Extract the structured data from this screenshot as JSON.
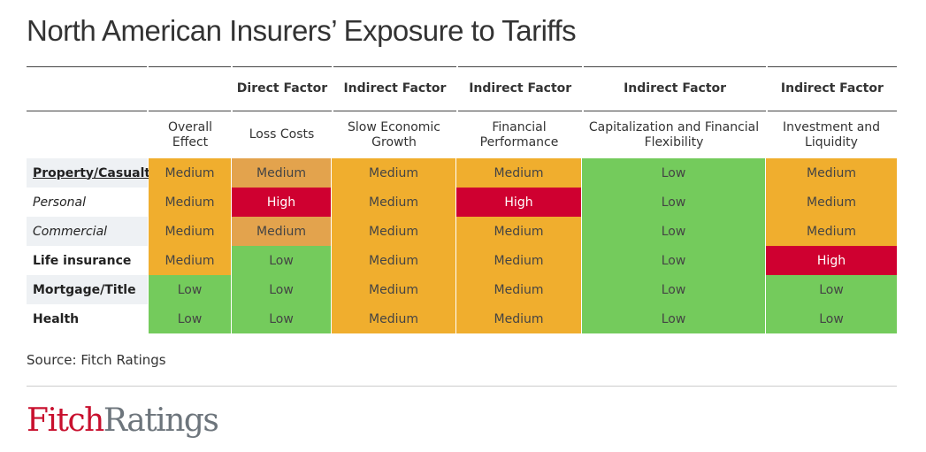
{
  "title": "North American Insurers’ Exposure to Tariffs",
  "factor_headers": [
    "",
    "",
    "Direct Factor",
    "Indirect Factor",
    "Indirect Factor",
    "Indirect Factor",
    "Indirect Factor"
  ],
  "sub_headers": [
    "",
    "Overall Effect",
    "Loss Costs",
    "Slow Economic Growth",
    "Financial Performance",
    "Capitalization and Financial Flexibility",
    "Investment and Liquidity"
  ],
  "rows": [
    {
      "label": "Property/Casualty",
      "style": "underline-bold",
      "values": [
        "Medium",
        "Medium",
        "Medium",
        "Medium",
        "Low",
        "Medium"
      ]
    },
    {
      "label": "Personal",
      "style": "italic",
      "values": [
        "Medium",
        "High",
        "Medium",
        "High",
        "Low",
        "Medium"
      ]
    },
    {
      "label": "Commercial",
      "style": "italic",
      "values": [
        "Medium",
        "Medium",
        "Medium",
        "Medium",
        "Low",
        "Medium"
      ]
    },
    {
      "label": "Life insurance",
      "style": "bold",
      "values": [
        "Medium",
        "Low",
        "Medium",
        "Medium",
        "Low",
        "High"
      ]
    },
    {
      "label": "Mortgage/Title",
      "style": "bold",
      "values": [
        "Low",
        "Low",
        "Medium",
        "Medium",
        "Low",
        "Low"
      ]
    },
    {
      "label": "Health",
      "style": "bold",
      "values": [
        "Low",
        "Low",
        "Medium",
        "Medium",
        "Low",
        "Low"
      ]
    }
  ],
  "colors": {
    "High": "#cf0030",
    "Medium": "#f0ae2e",
    "Medium_loss_costs": "#e3a34d",
    "Low": "#74cb5c"
  },
  "source": "Source: Fitch Ratings",
  "logo": {
    "part1": "Fitch",
    "part2": "Ratings"
  }
}
